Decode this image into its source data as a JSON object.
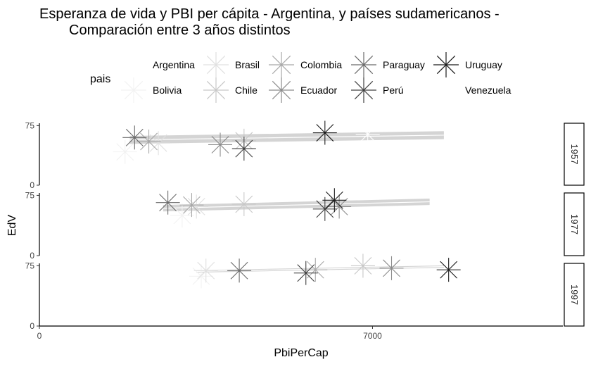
{
  "title_lines": [
    "Esperanza de vida y PBI per cápita - Argentina, y países sudamericanos -",
    "Comparación entre 3 años distintos"
  ],
  "legend": {
    "title": "pais",
    "entries": [
      {
        "name": "Argentina",
        "color": "#ffffff"
      },
      {
        "name": "Bolivia",
        "color": "#f2f2f2"
      },
      {
        "name": "Brasil",
        "color": "#e0e0e0"
      },
      {
        "name": "Chile",
        "color": "#c8c8c8"
      },
      {
        "name": "Colombia",
        "color": "#a8a8a8"
      },
      {
        "name": "Ecuador",
        "color": "#8c8c8c"
      },
      {
        "name": "Paraguay",
        "color": "#6a6a6a"
      },
      {
        "name": "Perú",
        "color": "#404040"
      },
      {
        "name": "Uruguay",
        "color": "#1a1a1a"
      },
      {
        "name": "Venezuela",
        "color": "#ffffff"
      }
    ]
  },
  "chart_data": {
    "type": "scatter",
    "xlabel": "PbiPerCap",
    "ylabel": "EdV",
    "xlim": [
      0,
      11000
    ],
    "ylim": [
      0,
      78
    ],
    "x_ticks": [
      0,
      7000
    ],
    "y_ticks": [
      0,
      75
    ],
    "facets": [
      {
        "label": "1957",
        "points": [
          {
            "pais": "Argentina",
            "x": 6900,
            "y": 64
          },
          {
            "pais": "Bolivia",
            "x": 1800,
            "y": 42
          },
          {
            "pais": "Brasil",
            "x": 2500,
            "y": 53
          },
          {
            "pais": "Chile",
            "x": 4300,
            "y": 56
          },
          {
            "pais": "Colombia",
            "x": 2300,
            "y": 55
          },
          {
            "pais": "Ecuador",
            "x": 3800,
            "y": 51
          },
          {
            "pais": "Paraguay",
            "x": 2000,
            "y": 60
          },
          {
            "pais": "Perú",
            "x": 4300,
            "y": 46
          },
          {
            "pais": "Uruguay",
            "x": 6000,
            "y": 66
          },
          {
            "pais": "Venezuela",
            "x": 9800,
            "y": 56
          }
        ],
        "trend": {
          "x_start": 1900,
          "x_end": 8500,
          "y_start": 57,
          "y_end": 63,
          "band": 5
        }
      },
      {
        "label": "1977",
        "points": [
          {
            "pais": "Argentina",
            "x": 10100,
            "y": 68
          },
          {
            "pais": "Bolivia",
            "x": 3000,
            "y": 50
          },
          {
            "pais": "Brasil",
            "x": 3300,
            "y": 61
          },
          {
            "pais": "Chile",
            "x": 4300,
            "y": 64
          },
          {
            "pais": "Colombia",
            "x": 3200,
            "y": 63
          },
          {
            "pais": "Ecuador",
            "x": 6300,
            "y": 61
          },
          {
            "pais": "Paraguay",
            "x": 2700,
            "y": 66
          },
          {
            "pais": "Perú",
            "x": 6000,
            "y": 58
          },
          {
            "pais": "Uruguay",
            "x": 6200,
            "y": 69
          },
          {
            "pais": "Venezuela",
            "x": 9900,
            "y": 67
          }
        ],
        "trend": {
          "x_start": 2600,
          "x_end": 8200,
          "y_start": 59,
          "y_end": 67,
          "band": 4
        }
      },
      {
        "label": "1997",
        "points": [
          {
            "pais": "Argentina",
            "x": 10700,
            "y": 73
          },
          {
            "pais": "Bolivia",
            "x": 3400,
            "y": 62
          },
          {
            "pais": "Brasil",
            "x": 3500,
            "y": 69
          },
          {
            "pais": "Chile",
            "x": 6800,
            "y": 75
          },
          {
            "pais": "Colombia",
            "x": 5800,
            "y": 70
          },
          {
            "pais": "Ecuador",
            "x": 7400,
            "y": 72
          },
          {
            "pais": "Paraguay",
            "x": 4200,
            "y": 69
          },
          {
            "pais": "Perú",
            "x": 5600,
            "y": 66
          },
          {
            "pais": "Uruguay",
            "x": 8600,
            "y": 70
          },
          {
            "pais": "Venezuela",
            "x": 9800,
            "y": 73
          }
        ],
        "trend": {
          "x_start": 3300,
          "x_end": 8500,
          "y_start": 68,
          "y_end": 74,
          "band": 1.5
        }
      }
    ]
  }
}
